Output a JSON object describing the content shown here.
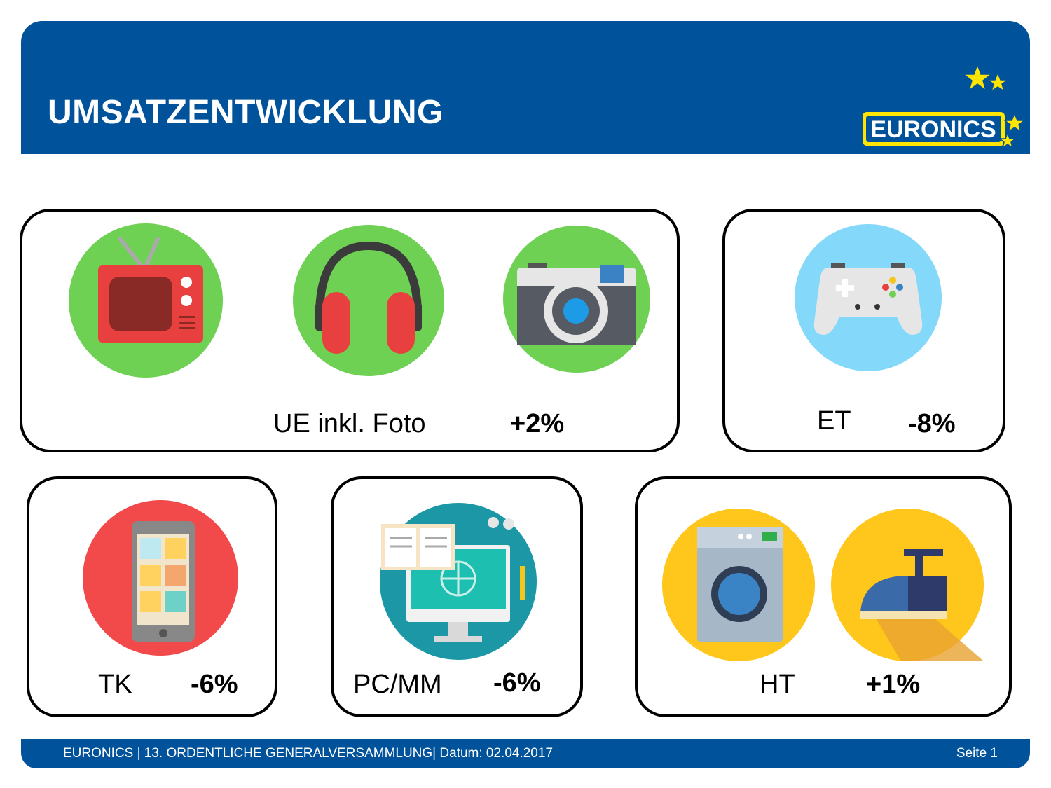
{
  "header": {
    "title": "UMSATZENTWICKLUNG",
    "logo_text": "EURONICS"
  },
  "categories": [
    {
      "label": "UE inkl. Foto",
      "change": "+2%"
    },
    {
      "label": "ET",
      "change": "-8%"
    },
    {
      "label": "TK",
      "change": "-6%"
    },
    {
      "label": "PC/MM",
      "change": "-6%"
    },
    {
      "label": "HT",
      "change": "+1%"
    }
  ],
  "icons": [
    "tv-icon",
    "headphones-icon",
    "camera-icon",
    "gamepad-icon",
    "smartphone-icon",
    "computer-icon",
    "washing-machine-icon",
    "iron-icon"
  ],
  "colors": {
    "brand_blue": "#00539b",
    "logo_yellow": "#ffe500",
    "green": "#6ed153",
    "light_blue": "#84d8fa",
    "red": "#f24a4a",
    "teal": "#1b97a6",
    "yellow": "#ffc61b"
  },
  "footer": {
    "text": "EURONICS | 13. ORDENTLICHE GENERALVERSAMMLUNG| Datum: 02.04.2017",
    "page": "Seite 1"
  }
}
